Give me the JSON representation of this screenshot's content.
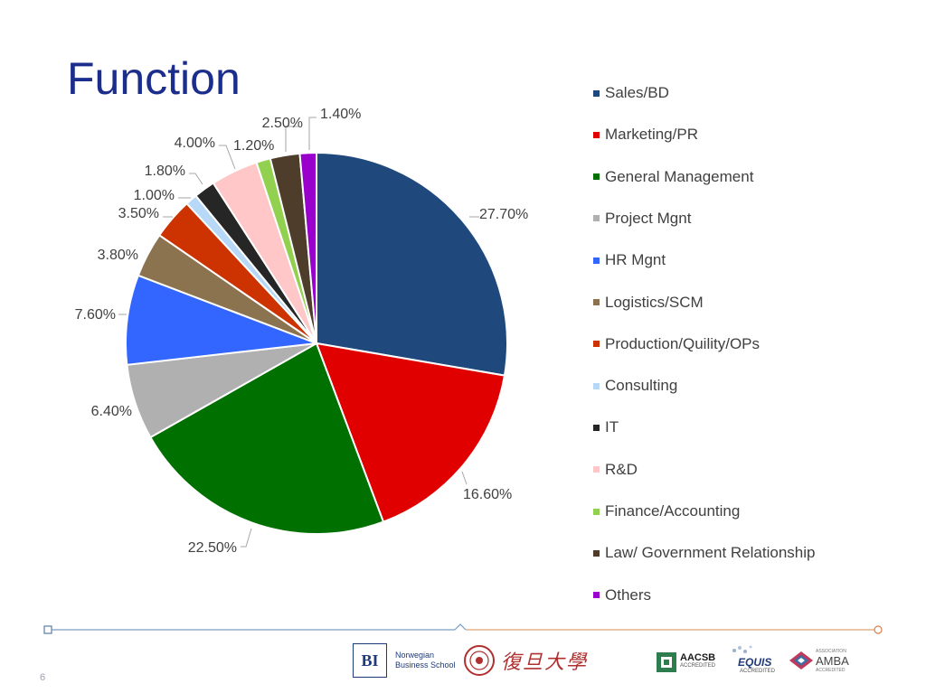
{
  "slide": {
    "title": "Function",
    "page_number": "6"
  },
  "chart_data": {
    "type": "pie",
    "title": "",
    "legend_position": "right",
    "start_angle_deg": 0,
    "direction": "clockwise",
    "slices": [
      {
        "name": "Sales/BD",
        "value": 27.7,
        "label": "27.70%",
        "color": "#1f497d"
      },
      {
        "name": "Marketing/PR",
        "value": 16.6,
        "label": "16.60%",
        "color": "#e00000"
      },
      {
        "name": "General Management",
        "value": 22.5,
        "label": "22.50%",
        "color": "#007000"
      },
      {
        "name": "Project Mgnt",
        "value": 6.4,
        "label": "6.40%",
        "color": "#b0b0b0"
      },
      {
        "name": "HR Mgnt",
        "value": 7.6,
        "label": "7.60%",
        "color": "#3366ff"
      },
      {
        "name": "Logistics/SCM",
        "value": 3.8,
        "label": "3.80%",
        "color": "#8b7350"
      },
      {
        "name": "Production/Quility/OPs",
        "value": 3.5,
        "label": "3.50%",
        "color": "#cc3300"
      },
      {
        "name": "Consulting",
        "value": 1.0,
        "label": "1.00%",
        "color": "#b7d9f7"
      },
      {
        "name": "IT",
        "value": 1.8,
        "label": "1.80%",
        "color": "#262626"
      },
      {
        "name": "R&D",
        "value": 4.0,
        "label": "4.00%",
        "color": "#ffc7c7"
      },
      {
        "name": "Finance/Accounting",
        "value": 1.2,
        "label": "1.20%",
        "color": "#92d050"
      },
      {
        "name": "Law/ Government Relationship",
        "value": 2.5,
        "label": "2.50%",
        "color": "#4d3d2a"
      },
      {
        "name": "Others",
        "value": 1.4,
        "label": "1.40%",
        "color": "#9900cc"
      }
    ]
  },
  "logos": {
    "bi_mark": "BI",
    "bi_line1": "Norwegian",
    "bi_line2": "Business School",
    "fudan_chars": "復旦大學",
    "aacsb_name": "AACSB",
    "aacsb_sub": "ACCREDITED",
    "equis_name": "EQUIS",
    "equis_sub": "ACCREDITED",
    "amba_top": "ASSOCIATION",
    "amba_name": "AMBA",
    "amba_sub": "ACCREDITED"
  },
  "colors": {
    "title": "#1c2e8c",
    "footer_left_line": "#7a9cc4",
    "footer_right_line": "#e0a070"
  }
}
